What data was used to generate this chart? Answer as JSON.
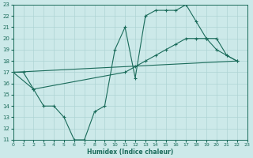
{
  "bg_color": "#cce9e9",
  "grid_color": "#aed4d4",
  "line_color": "#1a6b5a",
  "xlabel": "Humidex (Indice chaleur)",
  "ylim": [
    11,
    23
  ],
  "xlim": [
    0,
    23
  ],
  "yticks": [
    11,
    12,
    13,
    14,
    15,
    16,
    17,
    18,
    19,
    20,
    21,
    22,
    23
  ],
  "xticks": [
    0,
    1,
    2,
    3,
    4,
    5,
    6,
    7,
    8,
    9,
    10,
    11,
    12,
    13,
    14,
    15,
    16,
    17,
    18,
    19,
    20,
    21,
    22,
    23
  ],
  "curve1_x": [
    0,
    1,
    2,
    3,
    4,
    5,
    6,
    7,
    8,
    9,
    10,
    11,
    12,
    13,
    14,
    15,
    16,
    17,
    18,
    19,
    20,
    21,
    22
  ],
  "curve1_y": [
    17,
    17,
    15.5,
    14,
    14,
    13,
    11,
    11,
    13.5,
    14,
    19,
    21,
    16.5,
    22,
    22.5,
    22.5,
    22.5,
    23,
    21.5,
    20,
    19,
    18.5,
    18
  ],
  "curve2_x": [
    0,
    2,
    11,
    12,
    13,
    14,
    15,
    16,
    17,
    18,
    19,
    20,
    21,
    22
  ],
  "curve2_y": [
    17,
    15.5,
    17,
    17.5,
    18,
    18.5,
    19,
    19.5,
    20,
    20,
    20,
    20,
    18.5,
    18
  ],
  "curve3_x": [
    0,
    22
  ],
  "curve3_y": [
    17,
    18
  ]
}
